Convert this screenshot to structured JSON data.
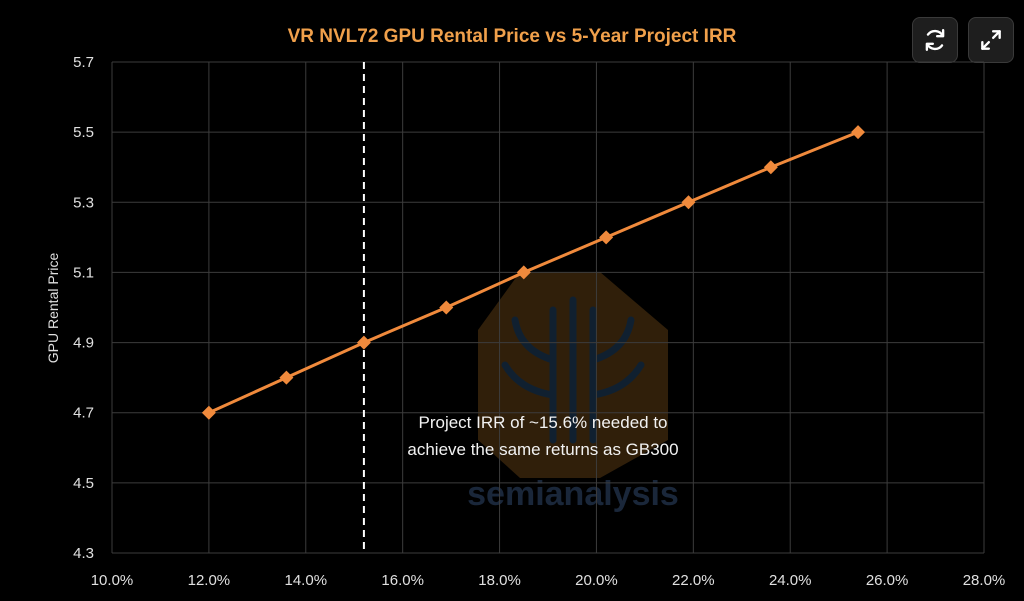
{
  "toolbar": {
    "refresh_icon": "refresh-icon",
    "expand_icon": "expand-icon"
  },
  "watermark": {
    "text": "semianalysis",
    "color": "#4a6fa5"
  },
  "colors": {
    "background": "#000000",
    "series": "#f08a3c",
    "title": "#f0a04b",
    "grid": "#3c3c3c",
    "axis_text": "#e0e0e0",
    "marker_line": "#ffffff"
  },
  "chart_data": {
    "type": "line",
    "title": "VR NVL72 GPU Rental Price vs 5-Year Project IRR",
    "xlabel": "",
    "ylabel": "GPU Rental Price",
    "xlim": [
      0.1,
      0.28
    ],
    "ylim": [
      4.3,
      5.7
    ],
    "x_ticks": [
      "10.0%",
      "12.0%",
      "14.0%",
      "16.0%",
      "18.0%",
      "20.0%",
      "22.0%",
      "24.0%",
      "26.0%",
      "28.0%"
    ],
    "y_ticks": [
      "4.3",
      "4.5",
      "4.7",
      "4.9",
      "5.1",
      "5.3",
      "5.5",
      "5.7"
    ],
    "grid": true,
    "series": [
      {
        "x": [
          0.12,
          0.136,
          0.152,
          0.169,
          0.185,
          0.202,
          0.219,
          0.236,
          0.254
        ],
        "y": [
          4.7,
          4.8,
          4.9,
          5.0,
          5.1,
          5.2,
          5.3,
          5.4,
          5.5
        ],
        "marker": "diamond"
      }
    ],
    "reference_line": {
      "x": 0.152,
      "style": "dashed"
    },
    "annotation": {
      "lines": [
        "Project IRR of ~15.6% needed to",
        "achieve the same returns as GB300"
      ]
    }
  }
}
